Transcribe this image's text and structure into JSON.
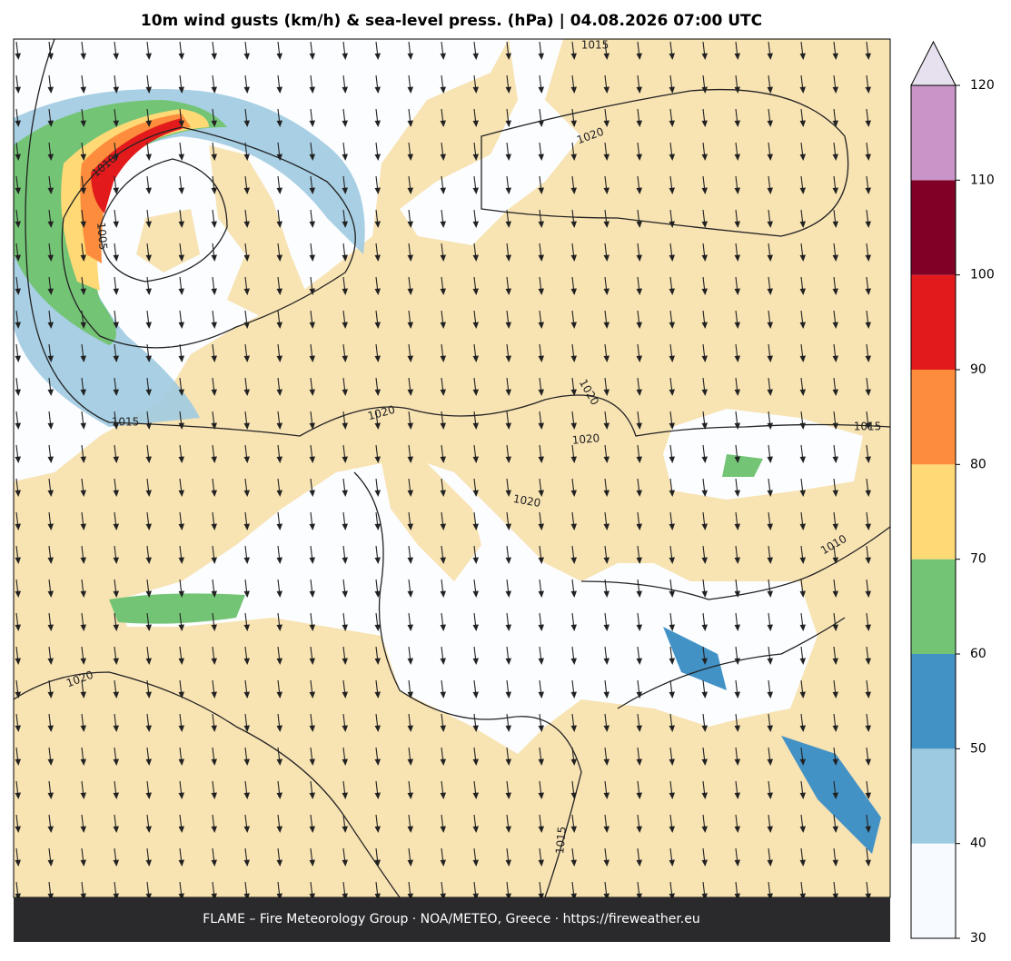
{
  "title": "10m wind gusts (km/h) & sea-level press. (hPa)  |  04.08.2026 07:00 UTC",
  "footer": "FLAME – Fire Meteorology Group · NOA/METEO, Greece · https://fireweather.eu",
  "colorbar": {
    "ticks": [
      30,
      40,
      50,
      60,
      70,
      80,
      90,
      100,
      110,
      120
    ],
    "colors": [
      "#f7fbff",
      "#9ecae1",
      "#4292c6",
      "#74c476",
      "#fed976",
      "#fd8d3c",
      "#e31a1c",
      "#800026",
      "#c994c7"
    ],
    "extend": "max",
    "extend_color": "#e7e1ef"
  },
  "isobar_labels": [
    1015,
    1020,
    1010,
    1005,
    1015,
    1020,
    1020,
    1020,
    1015,
    1020,
    1010,
    1020,
    1015
  ]
}
